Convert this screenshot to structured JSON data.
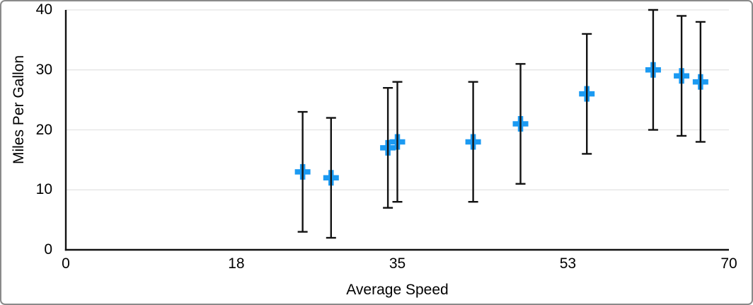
{
  "chart_data": {
    "type": "scatter",
    "title": "",
    "xlabel": "Average Speed",
    "ylabel": "Miles Per Gallon",
    "xlim": [
      0,
      70
    ],
    "ylim": [
      0,
      40
    ],
    "x_ticks": [
      0,
      18,
      35,
      53,
      70
    ],
    "y_ticks": [
      0,
      10,
      20,
      30,
      40
    ],
    "grid": "horizontal",
    "legend": "none",
    "series": [
      {
        "name": "Miles Per Gallon",
        "marker": "plus",
        "marker_color": "#1b9af2",
        "error_bar_color": "#121212",
        "error_bar_type": "symmetric-absolute",
        "points": [
          {
            "x": 25,
            "y": 13,
            "err_plus": 10,
            "err_minus": 10
          },
          {
            "x": 28,
            "y": 12,
            "err_plus": 10,
            "err_minus": 10
          },
          {
            "x": 34,
            "y": 17,
            "err_plus": 10,
            "err_minus": 10
          },
          {
            "x": 35,
            "y": 18,
            "err_plus": 10,
            "err_minus": 10
          },
          {
            "x": 43,
            "y": 18,
            "err_plus": 10,
            "err_minus": 10
          },
          {
            "x": 48,
            "y": 21,
            "err_plus": 10,
            "err_minus": 10
          },
          {
            "x": 55,
            "y": 26,
            "err_plus": 10,
            "err_minus": 10
          },
          {
            "x": 62,
            "y": 30,
            "err_plus": 10,
            "err_minus": 10
          },
          {
            "x": 65,
            "y": 29,
            "err_plus": 10,
            "err_minus": 10
          },
          {
            "x": 67,
            "y": 28,
            "err_plus": 10,
            "err_minus": 10
          }
        ]
      }
    ]
  },
  "style": {
    "axis_color": "#121212",
    "grid_color": "#e3e3e3",
    "text_color": "#000000",
    "frame_border_color": "#8a8a8a",
    "background": "#ffffff"
  }
}
